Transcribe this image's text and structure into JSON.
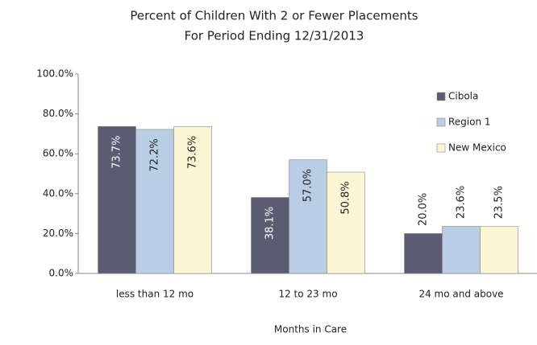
{
  "chart_data": {
    "type": "bar",
    "title": "Percent of Children With 2 or Fewer Placements",
    "subtitle": "For Period Ending 12/31/2013",
    "x_label": "Months in Care",
    "categories": [
      "less than 12 mo",
      "12 to 23 mo",
      "24 mo and above"
    ],
    "series": [
      {
        "name": "Cibola",
        "color": "#5b5b72",
        "values": [
          73.7,
          38.1,
          20.0
        ],
        "value_labels": [
          "73.7%",
          "38.1%",
          "20.0%"
        ]
      },
      {
        "name": "Region 1",
        "color": "#b9cde5",
        "values": [
          72.2,
          57.0,
          23.6
        ],
        "value_labels": [
          "72.2%",
          "57.0%",
          "23.6%"
        ]
      },
      {
        "name": "New Mexico",
        "color": "#fcf6d5",
        "values": [
          73.6,
          50.8,
          23.5
        ],
        "value_labels": [
          "73.6%",
          "50.8%",
          "23.5%"
        ]
      }
    ],
    "ylim": [
      0,
      100
    ],
    "yticks": [
      {
        "value": 0,
        "label": "0.0%"
      },
      {
        "value": 20,
        "label": "20.0%"
      },
      {
        "value": 40,
        "label": "40.0%"
      },
      {
        "value": 60,
        "label": "60.0%"
      },
      {
        "value": 80,
        "label": "80.0%"
      },
      {
        "value": 100,
        "label": "100.0%"
      }
    ],
    "grid": false,
    "legend": "right"
  }
}
